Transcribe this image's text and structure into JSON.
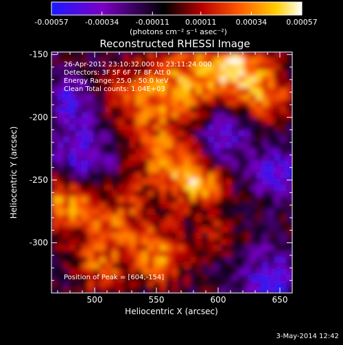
{
  "chart_data": {
    "type": "heatmap",
    "title": "Reconstructed RHESSI Image",
    "xlabel": "Heliocentric X (arcsec)",
    "ylabel": "Heliocentric Y (arcsec)",
    "xlim": [
      465,
      660
    ],
    "ylim": [
      -340,
      -148
    ],
    "xticks": [
      "500",
      "550",
      "600",
      "650"
    ],
    "xtick_values": [
      500,
      550,
      600,
      650
    ],
    "yticks": [
      "-150",
      "-200",
      "-250",
      "-300"
    ],
    "ytick_values": [
      -150,
      -200,
      -250,
      -300
    ],
    "colorbar": {
      "ticks": [
        "-0.00057",
        "-0.00034",
        "-0.00011",
        "0.00011",
        "0.00034",
        "0.00057"
      ],
      "tick_values": [
        -0.00057,
        -0.00034,
        -0.00011,
        0.00011,
        0.00034,
        0.00057
      ],
      "range": [
        -0.00057,
        0.00057
      ],
      "units": "(photons cm⁻² s⁻¹ asec⁻²)",
      "colormap": [
        "#1a1aff",
        "#7b00c8",
        "#000000",
        "#b80000",
        "#ff5a00",
        "#ffd000",
        "#ffffff"
      ]
    },
    "annotations": [
      "26-Apr-2012 23:10:32.000 to 23:11:24.000",
      "Detectors: 3F 5F 6F 7F 8F    Att 0",
      "Energy Range: 25.0 - 50.0 keV",
      "Clean     Total counts: 1.04E+03"
    ],
    "peak_label": "Position of Peak = [604,-154]",
    "peak": [
      604,
      -154
    ],
    "grid": false
  },
  "footer": {
    "date": "3-May-2014 12:42"
  }
}
